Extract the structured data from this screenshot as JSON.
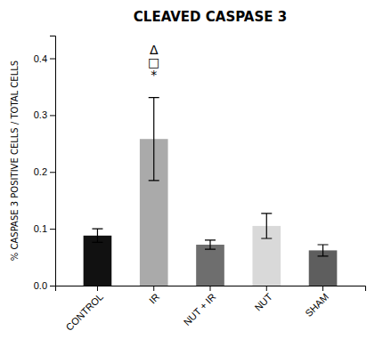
{
  "chart_data": {
    "type": "bar",
    "title": "CLEAVED CASPASE 3",
    "ylabel": "% CASPASE 3 POSITIVE CELLS / TOTAL CELLS",
    "categories": [
      "CONTROL",
      "IR",
      "NUT + IR",
      "NUT",
      "SHAM"
    ],
    "values": [
      0.088,
      0.258,
      0.072,
      0.105,
      0.062
    ],
    "errors": [
      0.012,
      0.073,
      0.008,
      0.022,
      0.01
    ],
    "colors": [
      "#111111",
      "#aaaaaa",
      "#6e6e6e",
      "#d9d9d9",
      "#5e5e5e"
    ],
    "ylim": [
      0.0,
      0.44
    ],
    "yticks": [
      {
        "value": 0.0,
        "label": "0.0"
      },
      0.1,
      0.2,
      0.3,
      0.4
    ],
    "annotations": [
      {
        "text": "Δ",
        "x": "IR",
        "y": 0.415
      },
      {
        "text": "□",
        "x": "IR",
        "y": 0.393
      },
      {
        "text": "*",
        "x": "IR",
        "y": 0.371
      }
    ],
    "grid": false
  }
}
